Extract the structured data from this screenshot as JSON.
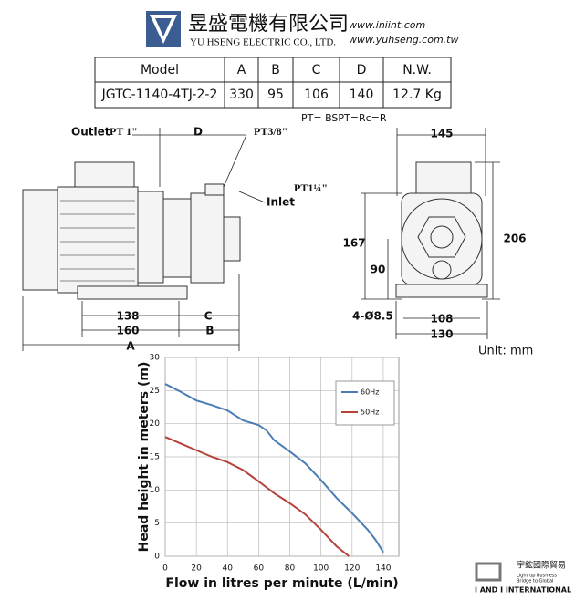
{
  "header": {
    "company_cn": "昱盛電機有限公司",
    "company_en": "YU HSENG ELECTRIC CO., LTD.",
    "url1": "www.iniint.com",
    "url2": "www.yuhseng.com.tw"
  },
  "table": {
    "header": [
      "Model",
      "A",
      "B",
      "C",
      "D",
      "N.W."
    ],
    "rows": [
      [
        "JGTC-1140-4TJ-2-2",
        330,
        95,
        106,
        140,
        "12.7 Kg"
      ]
    ]
  },
  "note": "PT= BSPT=Rc=R",
  "drawing": {
    "outlet": "Outlet",
    "outlet_thread": "PT 1\"",
    "d": "D",
    "drain_thread": "PT3/8\"",
    "inlet_thread": "PT1¼\"",
    "inlet": "Inlet",
    "dim_138": "138",
    "c": "C",
    "dim_160": "160",
    "b": "B",
    "a": "A",
    "dim_145": "145",
    "dim_167": "167",
    "dim_90": "90",
    "dim_206": "206",
    "holes": "4-Ø8.5",
    "dim_108": "108",
    "dim_130": "130",
    "unit": "Unit: mm"
  },
  "chart_data": {
    "type": "line",
    "xlabel": "Flow in litres per minute (L/min)",
    "ylabel": "Head height in meters (m)",
    "xlim": [
      0,
      150
    ],
    "xticks": [
      0,
      20,
      40,
      60,
      80,
      100,
      120,
      140
    ],
    "ylim": [
      0,
      30
    ],
    "yticks": [
      0,
      5,
      10,
      15,
      20,
      25,
      30
    ],
    "grid": true,
    "series": [
      {
        "name": "60Hz",
        "color": "#4a7db4",
        "x": [
          0,
          10,
          20,
          30,
          40,
          50,
          60,
          65,
          70,
          80,
          90,
          100,
          110,
          120,
          130,
          135,
          140
        ],
        "values": [
          26,
          24.8,
          23.5,
          22.8,
          22,
          20.5,
          19.8,
          19,
          17.5,
          15.8,
          14,
          11.5,
          8.8,
          6.5,
          4,
          2.5,
          0.6
        ]
      },
      {
        "name": "50Hz",
        "color": "#b5423a",
        "x": [
          0,
          10,
          20,
          30,
          40,
          50,
          60,
          70,
          80,
          90,
          100,
          110,
          118
        ],
        "values": [
          18,
          17,
          16,
          15,
          14.2,
          13,
          11.3,
          9.5,
          8,
          6.3,
          4,
          1.5,
          0
        ]
      }
    ]
  },
  "footer": {
    "name_cn": "宇鋐國際貿易",
    "tagline1": "Light up Business",
    "tagline2": "Bridge to Global",
    "name_en": "I AND I INTERNATIONAL"
  }
}
